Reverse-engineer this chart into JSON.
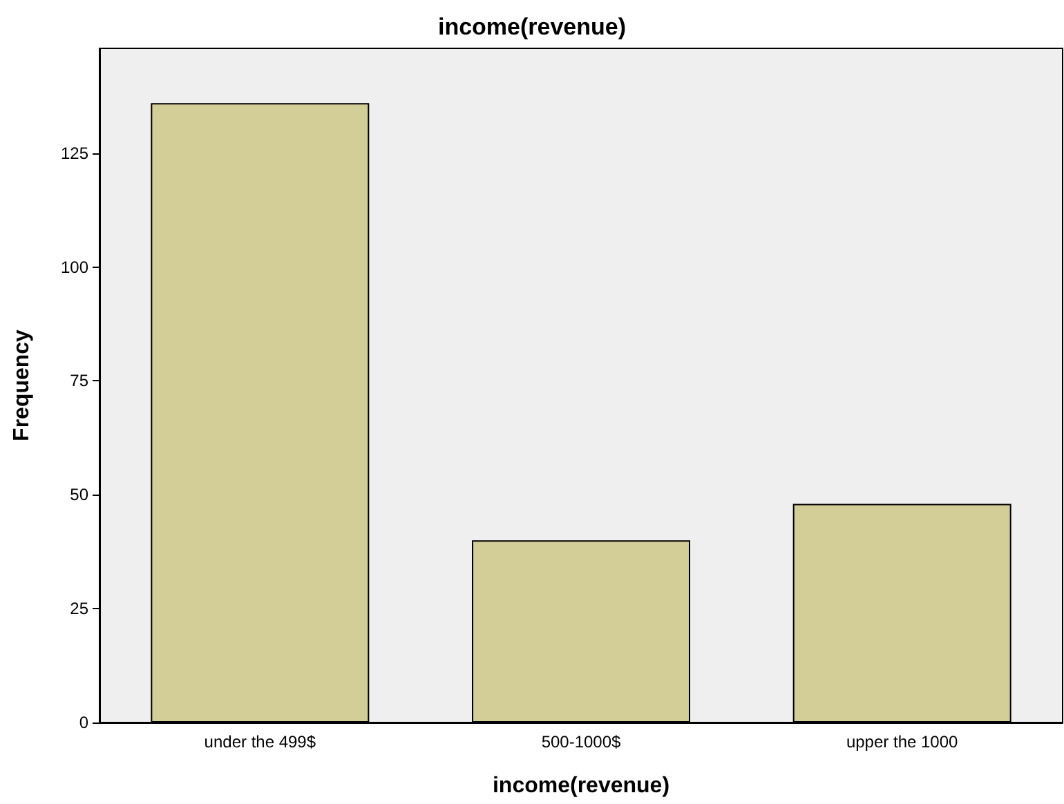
{
  "chart_data": {
    "type": "bar",
    "title": "income(revenue)",
    "xlabel": "income(revenue)",
    "ylabel": "Frequency",
    "categories": [
      "under the 499$",
      "500-1000$",
      "upper the 1000"
    ],
    "values": [
      136,
      40,
      48
    ],
    "color": "#d3ce97",
    "ylim": [
      0,
      148
    ],
    "yticks": [
      0,
      25,
      50,
      75,
      100,
      125
    ],
    "grid": false
  }
}
